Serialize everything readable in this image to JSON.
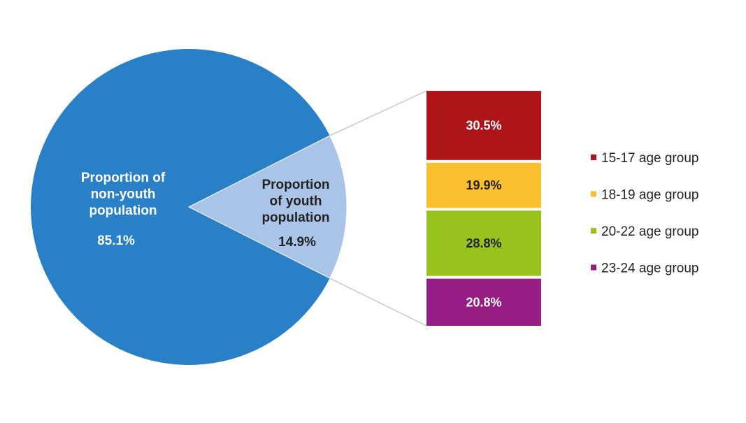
{
  "chart_data": {
    "type": "bar-of-pie",
    "pie": {
      "slices": [
        {
          "label_lines": [
            "Proportion of",
            "non-youth",
            "population"
          ],
          "value": 85.1,
          "value_label": "85.1%",
          "color": "#2980C6",
          "label_color": "#ffffff"
        },
        {
          "label_lines": [
            "Proportion",
            "of youth",
            "population"
          ],
          "value": 14.9,
          "value_label": "14.9%",
          "color": "#A9C4E6",
          "label_color": "#222222"
        }
      ]
    },
    "bar": {
      "categories": [
        "15-17 age group",
        "18-19 age group",
        "20-22 age group",
        "23-24 age group"
      ],
      "values": [
        30.5,
        19.9,
        28.8,
        20.8
      ],
      "value_labels": [
        "30.5%",
        "19.9%",
        "28.8%",
        "20.8%"
      ],
      "colors": [
        "#AE1518",
        "#FABF2F",
        "#98C21E",
        "#951D84"
      ],
      "label_colors": [
        "#ffffff",
        "#222222",
        "#222222",
        "#ffffff"
      ]
    },
    "legend": {
      "position": "right",
      "entries": [
        "15-17 age group",
        "18-19 age group",
        "20-22 age group",
        "23-24 age group"
      ]
    },
    "connector_color": "#C8C8C8"
  }
}
